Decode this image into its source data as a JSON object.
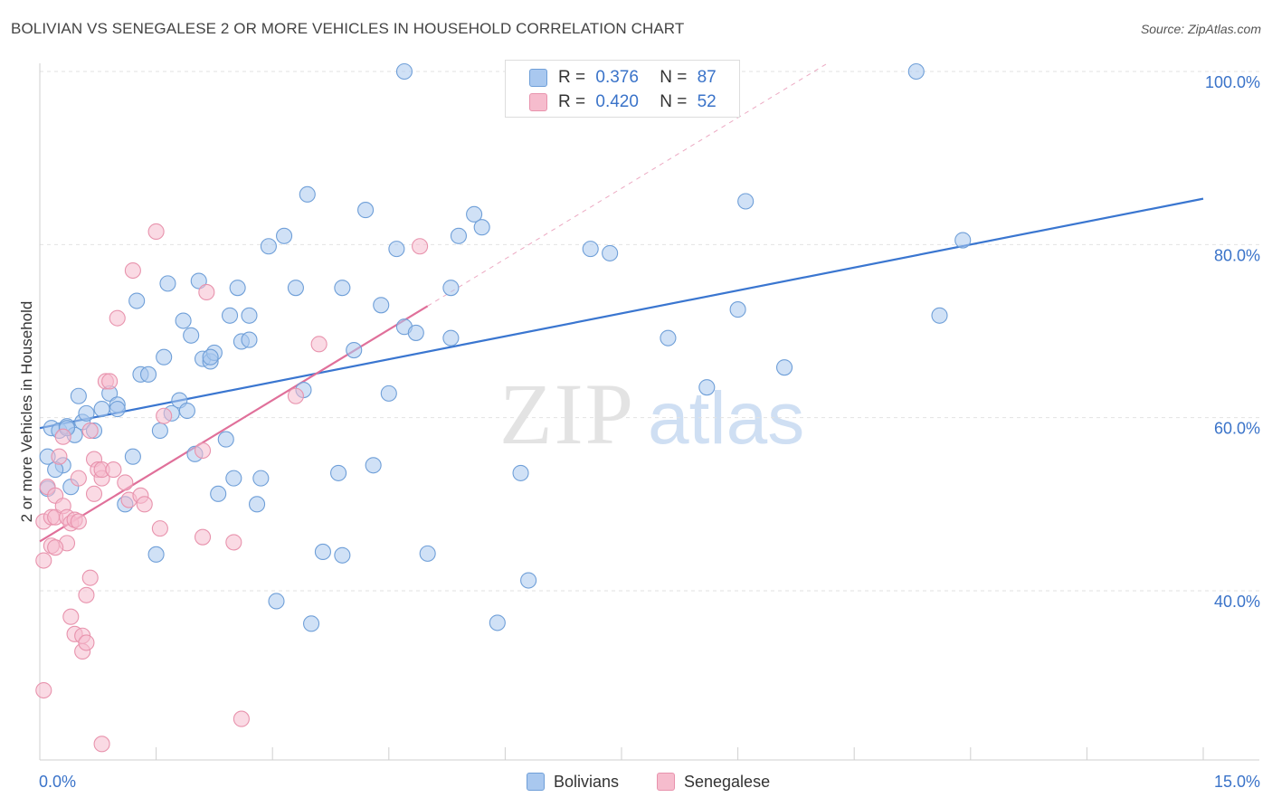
{
  "header": {
    "title": "BOLIVIAN VS SENEGALESE 2 OR MORE VEHICLES IN HOUSEHOLD CORRELATION CHART",
    "source": "Source: ZipAtlas.com"
  },
  "legend": {
    "bolivians": {
      "r_label": "R =",
      "r_value": "0.376",
      "n_label": "N =",
      "n_value": "87"
    },
    "senegalese": {
      "r_label": "R =",
      "r_value": "0.420",
      "n_label": "N =",
      "n_value": "52"
    }
  },
  "colors": {
    "bolivians_fill": "#a9c8ef",
    "bolivians_stroke": "#6f9fd8",
    "bolivians_line": "#3a76d0",
    "senegalese_fill": "#f6bccd",
    "senegalese_stroke": "#e893ad",
    "senegalese_line": "#e0709a",
    "tick_label": "#3a73c9"
  },
  "chart_data": {
    "type": "scatter",
    "title": "BOLIVIAN VS SENEGALESE 2 OR MORE VEHICLES IN HOUSEHOLD CORRELATION CHART",
    "xlabel": "",
    "ylabel": "2 or more Vehicles in Household",
    "xlim": [
      0,
      15
    ],
    "ylim": [
      20,
      102
    ],
    "x_tick_labels": [
      "0.0%",
      "15.0%"
    ],
    "y_ticks": [
      40,
      60,
      80,
      100
    ],
    "y_tick_labels": [
      "40.0%",
      "60.0%",
      "80.0%",
      "100.0%"
    ],
    "grid": "horizontal dashed",
    "watermark": "ZIPatlas",
    "legend_position": "top-center and bottom",
    "series": [
      {
        "name": "Bolivians",
        "trend": {
          "x": [
            0.0,
            15.0
          ],
          "y": [
            58.8,
            85.3
          ]
        },
        "points": [
          [
            0.1,
            51.8
          ],
          [
            0.1,
            55.5
          ],
          [
            0.15,
            58.8
          ],
          [
            0.25,
            58.5
          ],
          [
            0.3,
            54.5
          ],
          [
            0.35,
            59.0
          ],
          [
            0.4,
            52.0
          ],
          [
            0.5,
            62.5
          ],
          [
            0.55,
            59.5
          ],
          [
            0.6,
            60.5
          ],
          [
            0.7,
            58.5
          ],
          [
            0.8,
            61.0
          ],
          [
            0.9,
            62.8
          ],
          [
            1.0,
            61.5
          ],
          [
            1.1,
            50.0
          ],
          [
            1.2,
            55.5
          ],
          [
            1.25,
            73.5
          ],
          [
            1.3,
            65.0
          ],
          [
            1.4,
            65.0
          ],
          [
            1.5,
            44.2
          ],
          [
            1.55,
            58.5
          ],
          [
            1.6,
            67.0
          ],
          [
            1.65,
            75.5
          ],
          [
            1.7,
            60.5
          ],
          [
            1.8,
            62.0
          ],
          [
            1.85,
            71.2
          ],
          [
            1.9,
            60.8
          ],
          [
            1.95,
            69.5
          ],
          [
            2.0,
            55.8
          ],
          [
            2.05,
            75.8
          ],
          [
            2.1,
            66.8
          ],
          [
            2.2,
            66.5
          ],
          [
            2.25,
            67.5
          ],
          [
            2.3,
            51.2
          ],
          [
            2.4,
            57.5
          ],
          [
            2.45,
            71.8
          ],
          [
            2.5,
            53.0
          ],
          [
            2.55,
            75.0
          ],
          [
            2.6,
            68.8
          ],
          [
            2.7,
            69.0
          ],
          [
            2.7,
            71.8
          ],
          [
            2.8,
            50.0
          ],
          [
            2.85,
            53.0
          ],
          [
            2.95,
            79.8
          ],
          [
            3.05,
            38.8
          ],
          [
            3.15,
            81.0
          ],
          [
            3.3,
            75.0
          ],
          [
            3.4,
            63.2
          ],
          [
            3.45,
            85.8
          ],
          [
            3.5,
            36.2
          ],
          [
            3.65,
            44.5
          ],
          [
            3.85,
            53.6
          ],
          [
            3.9,
            75.0
          ],
          [
            3.9,
            44.1
          ],
          [
            4.05,
            67.8
          ],
          [
            4.2,
            84.0
          ],
          [
            4.3,
            54.5
          ],
          [
            4.4,
            73.0
          ],
          [
            4.5,
            62.8
          ],
          [
            4.6,
            79.5
          ],
          [
            4.7,
            70.5
          ],
          [
            4.7,
            100.0
          ],
          [
            4.85,
            69.8
          ],
          [
            5.0,
            44.3
          ],
          [
            5.3,
            75.0
          ],
          [
            5.3,
            69.2
          ],
          [
            5.4,
            81.0
          ],
          [
            5.6,
            83.5
          ],
          [
            5.7,
            82.0
          ],
          [
            5.9,
            36.3
          ],
          [
            6.2,
            53.6
          ],
          [
            6.3,
            41.2
          ],
          [
            7.1,
            79.5
          ],
          [
            7.35,
            79.0
          ],
          [
            8.1,
            69.2
          ],
          [
            8.6,
            63.5
          ],
          [
            9.0,
            72.5
          ],
          [
            9.1,
            85.0
          ],
          [
            9.6,
            65.8
          ],
          [
            11.3,
            100.0
          ],
          [
            11.6,
            71.8
          ],
          [
            11.9,
            80.5
          ],
          [
            0.2,
            54.0
          ],
          [
            0.45,
            58.0
          ],
          [
            1.0,
            61.0
          ],
          [
            2.2,
            67.0
          ],
          [
            0.35,
            58.8
          ]
        ]
      },
      {
        "name": "Senegalese",
        "trend": {
          "x": [
            0.0,
            5.0
          ],
          "y": [
            45.7,
            72.9
          ]
        },
        "points": [
          [
            0.05,
            43.5
          ],
          [
            0.05,
            48.0
          ],
          [
            0.05,
            28.5
          ],
          [
            0.1,
            52.0
          ],
          [
            0.15,
            48.5
          ],
          [
            0.15,
            45.2
          ],
          [
            0.2,
            48.5
          ],
          [
            0.2,
            51.0
          ],
          [
            0.25,
            55.5
          ],
          [
            0.3,
            57.8
          ],
          [
            0.3,
            49.8
          ],
          [
            0.35,
            48.5
          ],
          [
            0.35,
            45.5
          ],
          [
            0.4,
            47.8
          ],
          [
            0.4,
            37.0
          ],
          [
            0.45,
            48.2
          ],
          [
            0.45,
            35.0
          ],
          [
            0.5,
            48.0
          ],
          [
            0.5,
            53.0
          ],
          [
            0.55,
            33.0
          ],
          [
            0.55,
            34.8
          ],
          [
            0.6,
            34.0
          ],
          [
            0.6,
            39.5
          ],
          [
            0.65,
            41.5
          ],
          [
            0.65,
            58.5
          ],
          [
            0.7,
            55.2
          ],
          [
            0.7,
            51.2
          ],
          [
            0.75,
            54.0
          ],
          [
            0.8,
            53.0
          ],
          [
            0.8,
            54.0
          ],
          [
            0.85,
            64.2
          ],
          [
            0.9,
            64.2
          ],
          [
            0.95,
            54.0
          ],
          [
            1.0,
            71.5
          ],
          [
            1.1,
            52.5
          ],
          [
            1.15,
            50.5
          ],
          [
            1.2,
            77.0
          ],
          [
            1.3,
            51.0
          ],
          [
            1.35,
            50.0
          ],
          [
            1.5,
            81.5
          ],
          [
            1.55,
            47.2
          ],
          [
            1.6,
            60.2
          ],
          [
            2.1,
            46.2
          ],
          [
            2.1,
            56.2
          ],
          [
            2.15,
            74.5
          ],
          [
            2.5,
            45.6
          ],
          [
            2.6,
            25.2
          ],
          [
            3.3,
            62.5
          ],
          [
            3.6,
            68.5
          ],
          [
            4.9,
            79.8
          ],
          [
            0.8,
            22.3
          ],
          [
            0.2,
            45.0
          ]
        ]
      }
    ]
  },
  "bottom_legend": {
    "bolivians_label": "Bolivians",
    "senegalese_label": "Senegalese"
  }
}
